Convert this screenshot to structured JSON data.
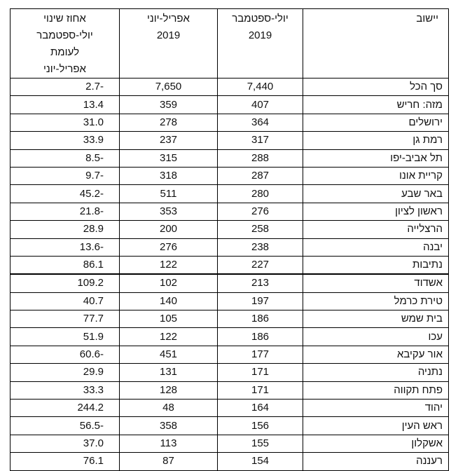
{
  "table": {
    "header": [
      [
        "יישוב"
      ],
      [
        "יולי-ספטמבר",
        "2019"
      ],
      [
        "אפריל-יוני",
        "2019"
      ],
      [
        "אחוז שינוי",
        "יולי-ספטמבר",
        "לעומת",
        "אפריל-יוני"
      ]
    ],
    "rows": [
      [
        "סך הכל",
        "7,440",
        "7,650",
        "2.7-"
      ],
      [
        "מזה: חריש",
        "407",
        "359",
        "13.4"
      ],
      [
        "ירושלים",
        "364",
        "278",
        "31.0"
      ],
      [
        "רמת גן",
        "317",
        "237",
        "33.9"
      ],
      [
        "תל אביב-יפו",
        "288",
        "315",
        "8.5-"
      ],
      [
        "קריית אונו",
        "287",
        "318",
        "9.7-"
      ],
      [
        "באר שבע",
        "280",
        "511",
        "45.2-"
      ],
      [
        "ראשון לציון",
        "276",
        "353",
        "21.8-"
      ],
      [
        "הרצלייה",
        "258",
        "200",
        "28.9"
      ],
      [
        "יבנה",
        "238",
        "276",
        "13.6-"
      ],
      [
        "נתיבות",
        "227",
        "122",
        "86.1"
      ],
      [
        "אשדוד",
        "213",
        "102",
        "109.2"
      ],
      [
        "טירת כרמל",
        "197",
        "140",
        "40.7"
      ],
      [
        "בית שמש",
        "186",
        "105",
        "77.7"
      ],
      [
        "עכו",
        "186",
        "122",
        "51.9"
      ],
      [
        "אור עקיבא",
        "177",
        "451",
        "60.6-"
      ],
      [
        "נתניה",
        "171",
        "131",
        "29.9"
      ],
      [
        "פתח תקווה",
        "171",
        "128",
        "33.3"
      ],
      [
        "יהוד",
        "164",
        "48",
        "244.2"
      ],
      [
        "ראש העין",
        "156",
        "358",
        "56.5-"
      ],
      [
        "אשקלון",
        "155",
        "113",
        "37.0"
      ],
      [
        "רעננה",
        "154",
        "87",
        "76.1"
      ]
    ]
  }
}
